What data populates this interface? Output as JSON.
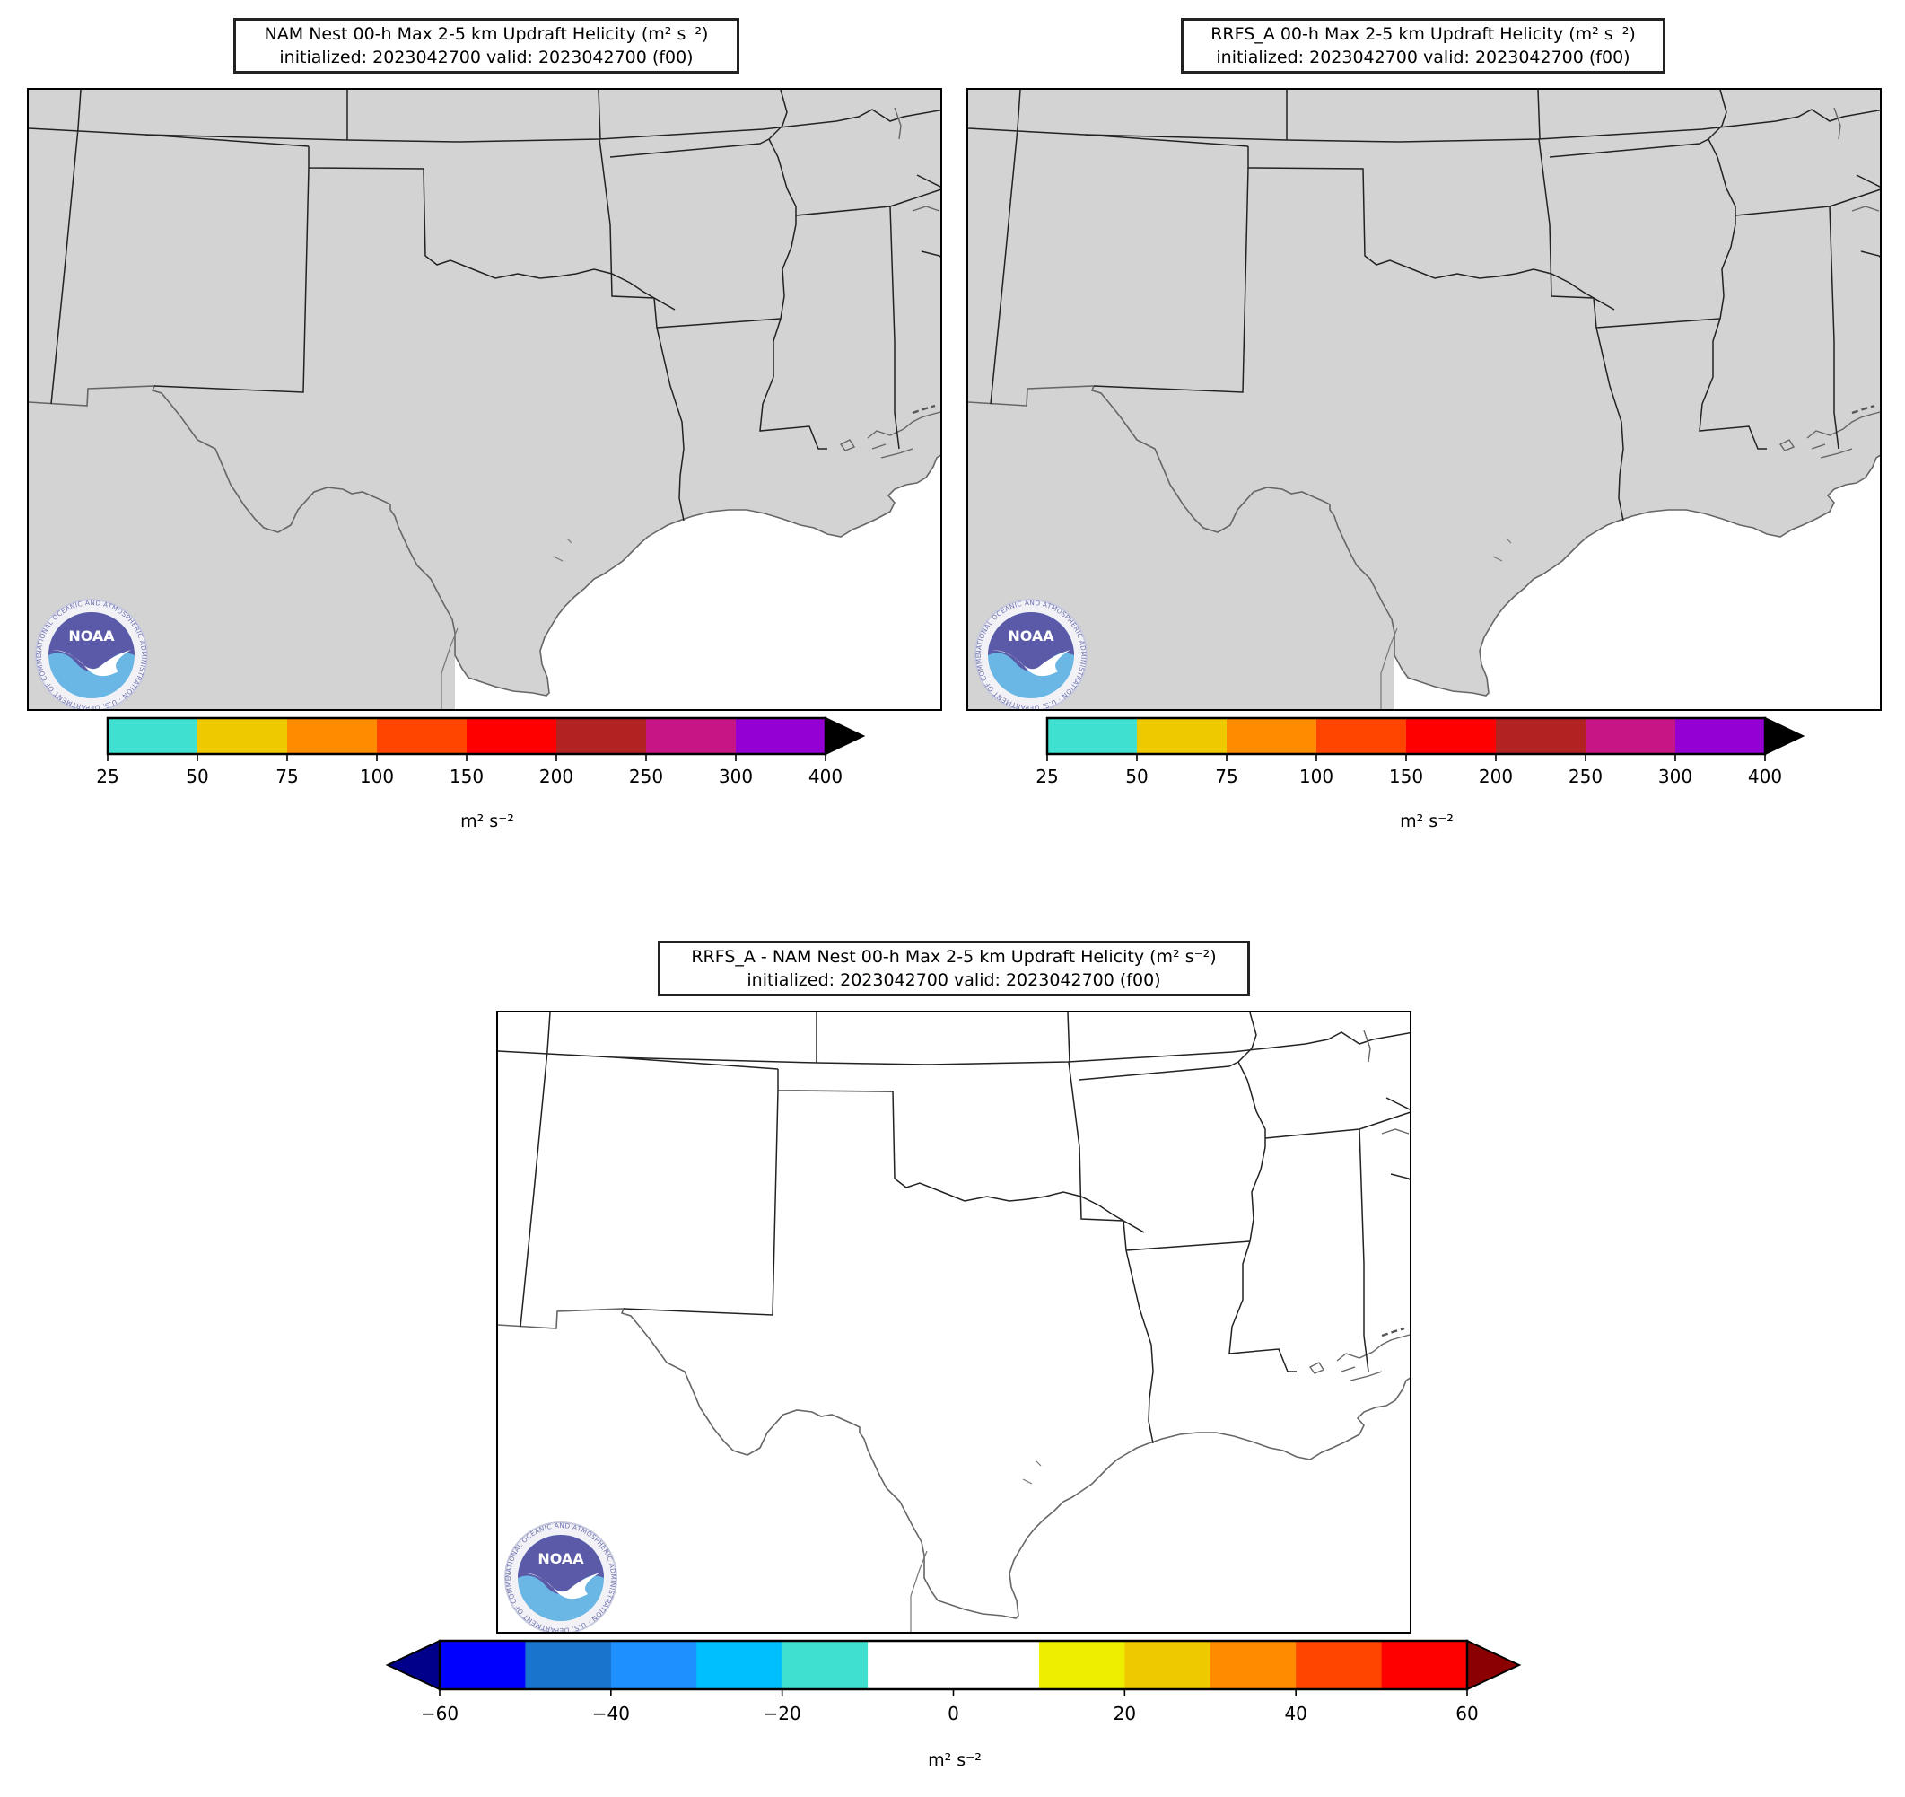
{
  "panels": [
    {
      "title_line1": "NAM Nest 00-h Max 2-5 km Updraft Helicity (m² s⁻²)",
      "title_line2": "initialized: 2023042700 valid: 2023042700 (f00)",
      "land_color": "#d3d3d3"
    },
    {
      "title_line1": "RRFS_A 00-h Max 2-5 km Updraft Helicity (m² s⁻²)",
      "title_line2": "initialized: 2023042700 valid: 2023042700 (f00)",
      "land_color": "#d3d3d3"
    },
    {
      "title_line1": "RRFS_A - NAM Nest 00-h Max 2-5 km Updraft Helicity (m² s⁻²)",
      "title_line2": "initialized: 2023042700 valid: 2023042700 (f00)",
      "land_color": "#ffffff"
    }
  ],
  "colorbar_top": {
    "label": "m² s⁻²",
    "ticks": [
      "25",
      "50",
      "75",
      "100",
      "150",
      "200",
      "250",
      "300",
      "400"
    ],
    "colors": [
      "#40e0d0",
      "#eec900",
      "#ff8c00",
      "#ff4500",
      "#ff0000",
      "#b22222",
      "#c71585",
      "#9400d3"
    ],
    "extend_max_color": "#000000"
  },
  "colorbar_diff": {
    "label": "m² s⁻²",
    "ticks": [
      "−60",
      "−40",
      "−20",
      "0",
      "20",
      "40",
      "60"
    ],
    "colors": [
      "#0000ff",
      "#1874cd",
      "#1e90ff",
      "#00bfff",
      "#40e0d0",
      "#ffffff",
      "#ffffff",
      "#eeee00",
      "#eec900",
      "#ff8c00",
      "#ff4500",
      "#ff0000"
    ],
    "extend_min_color": "#00008b",
    "extend_max_color": "#8b0000"
  },
  "logo": {
    "text": "NOAA",
    "ring_text": "NATIONAL OCEANIC AND ATMOSPHERIC ADMINISTRATION · U.S. DEPARTMENT OF COMMERCE"
  }
}
